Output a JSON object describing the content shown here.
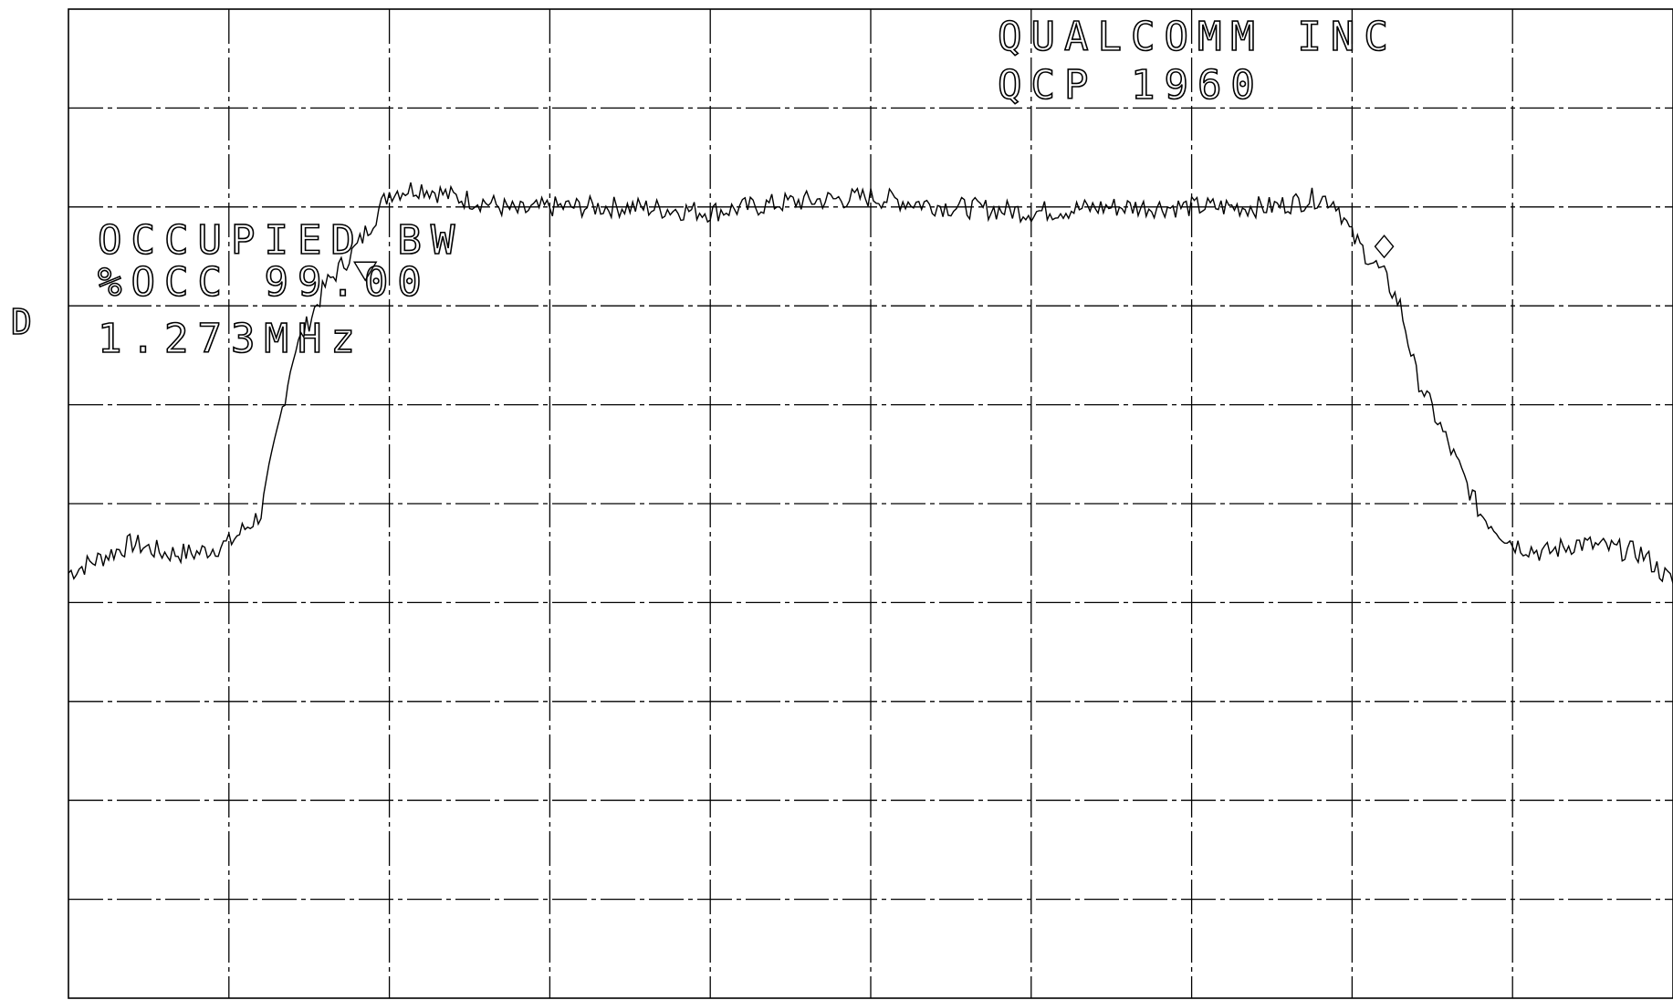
{
  "chart_data": {
    "type": "line",
    "title": "",
    "xlabel": "",
    "ylabel": "",
    "grid": true,
    "x_divisions": 10,
    "y_divisions": 10,
    "xlim": [
      0,
      10
    ],
    "ylim": [
      0,
      10
    ],
    "annotations": {
      "company": "QUALCOMM INC",
      "model": "QCP 1960",
      "measurement": "OCCUPIED BW",
      "percent": "%OCC 99.00",
      "bandwidth": "1.273MHz",
      "side_marker": "D"
    },
    "markers": [
      {
        "shape": "triangle-down",
        "x": 1.85,
        "y": 7.35
      },
      {
        "shape": "diamond",
        "x": 8.2,
        "y": 7.6
      }
    ],
    "series": [
      {
        "x": [
          0,
          0.2,
          0.4,
          0.6,
          0.8,
          1.0,
          1.2,
          1.4,
          1.6,
          1.8,
          2.0,
          2.2,
          2.4,
          2.6,
          2.8,
          3.0,
          3.5,
          4.0,
          4.5,
          5.0,
          5.5,
          6.0,
          6.5,
          7.0,
          7.5,
          7.8,
          7.9,
          8.0,
          8.1,
          8.2,
          8.3,
          8.4,
          8.6,
          8.8,
          9.0,
          9.2,
          9.4,
          9.6,
          9.8,
          10.0
        ],
        "y": [
          4.3,
          4.45,
          4.6,
          4.5,
          4.5,
          4.6,
          4.9,
          6.5,
          7.2,
          7.6,
          8.15,
          8.2,
          8.1,
          8.05,
          7.95,
          8.0,
          8.0,
          7.95,
          8.05,
          8.1,
          8.0,
          7.95,
          8.0,
          8.0,
          8.0,
          8.1,
          8.05,
          7.7,
          7.5,
          7.3,
          7.0,
          6.3,
          5.6,
          4.9,
          4.6,
          4.5,
          4.6,
          4.55,
          4.5,
          4.2
        ]
      }
    ]
  }
}
